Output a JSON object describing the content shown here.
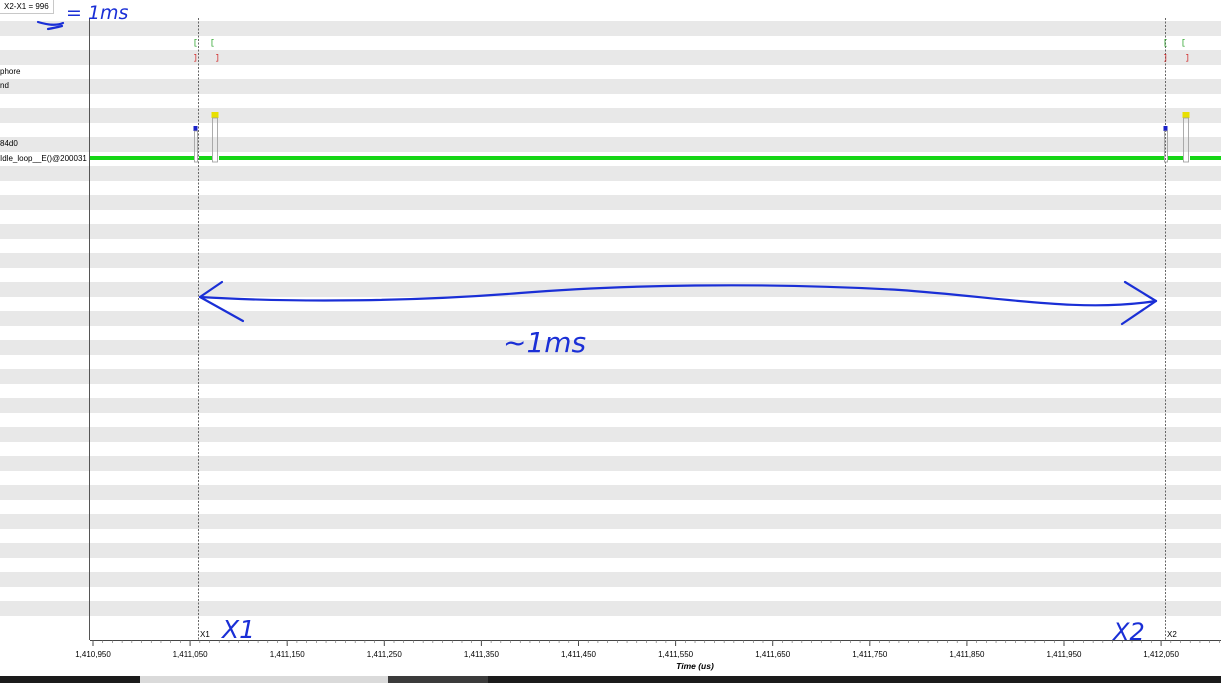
{
  "cursor_delta": {
    "text": "X2-X1 = 996"
  },
  "row_labels": [
    "phore",
    "nd",
    "84d0",
    "Idle_loop__E()@200031"
  ],
  "cursors": {
    "x1_label": "X1",
    "x2_label": "X2"
  },
  "time_axis": {
    "title": "Time (us)",
    "ticks": [
      "1,410,950",
      "1,411,050",
      "1,411,150",
      "1,411,250",
      "1,411,350",
      "1,411,450",
      "1,411,550",
      "1,411,650",
      "1,411,750",
      "1,411,850",
      "1,411,950",
      "1,412,050"
    ]
  },
  "annotations": {
    "equals_note": "= 1ms",
    "span_note": "~1ms",
    "x1_handwritten": "X1",
    "x2_handwritten": "X2"
  },
  "colors": {
    "idle_trace": "#16d616",
    "marker_yellow": "#e8e000",
    "marker_blue": "#1a22c8",
    "bracket_green": "#20a020",
    "bracket_red": "#d02020",
    "annotation_ink": "#1a2fd6"
  }
}
